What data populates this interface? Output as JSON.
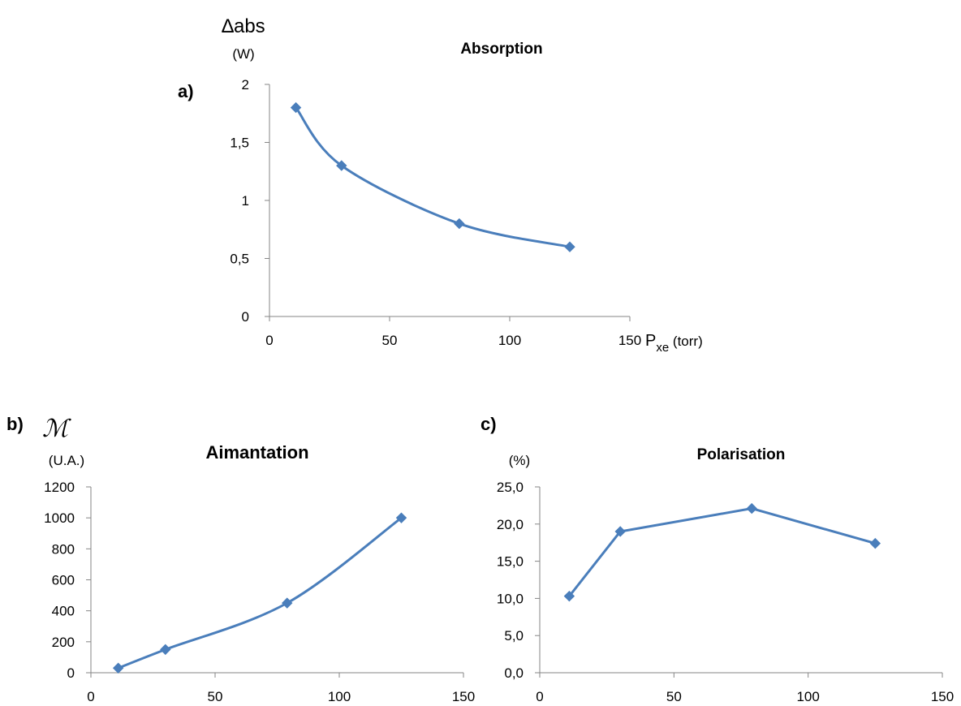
{
  "chart_data": [
    {
      "id": "a",
      "type": "line",
      "panel_label": "a)",
      "title": "Absorption",
      "ylabel": "∆abs",
      "yunit": "(W)",
      "xlabel_main": "P",
      "xlabel_sub": "xe",
      "xlabel_unit": " (torr)",
      "x": [
        11,
        30,
        79,
        125
      ],
      "series": [
        {
          "values": [
            1.8,
            1.3,
            0.8,
            0.6
          ]
        }
      ],
      "xlim": [
        0,
        150
      ],
      "ylim": [
        0,
        2
      ],
      "xticks": [
        "0",
        "50",
        "100",
        "150"
      ],
      "yticks": [
        "0",
        "0,5",
        "1",
        "1,5",
        "2"
      ],
      "smooth": true,
      "color": "#4a7ebb"
    },
    {
      "id": "b",
      "type": "line",
      "panel_label": "b)",
      "title": "Aimantation",
      "ylabel": "ℳ",
      "yunit": "(U.A.)",
      "x": [
        11,
        30,
        79,
        125
      ],
      "series": [
        {
          "values": [
            30,
            150,
            450,
            1000
          ]
        }
      ],
      "xlim": [
        0,
        150
      ],
      "ylim": [
        0,
        1200
      ],
      "xticks": [
        "0",
        "50",
        "100",
        "150"
      ],
      "yticks": [
        "0",
        "200",
        "400",
        "600",
        "800",
        "1000",
        "1200"
      ],
      "smooth": true,
      "color": "#4a7ebb"
    },
    {
      "id": "c",
      "type": "line",
      "panel_label": "c)",
      "title": "Polarisation",
      "yunit": "(%)",
      "x": [
        11,
        30,
        79,
        125
      ],
      "series": [
        {
          "values": [
            10.3,
            19.0,
            22.1,
            17.4
          ]
        }
      ],
      "xlim": [
        0,
        150
      ],
      "ylim": [
        0,
        25
      ],
      "xticks": [
        "0",
        "50",
        "100",
        "150"
      ],
      "yticks": [
        "0,0",
        "5,0",
        "10,0",
        "15,0",
        "20,0",
        "25,0"
      ],
      "smooth": false,
      "color": "#4a7ebb"
    }
  ]
}
